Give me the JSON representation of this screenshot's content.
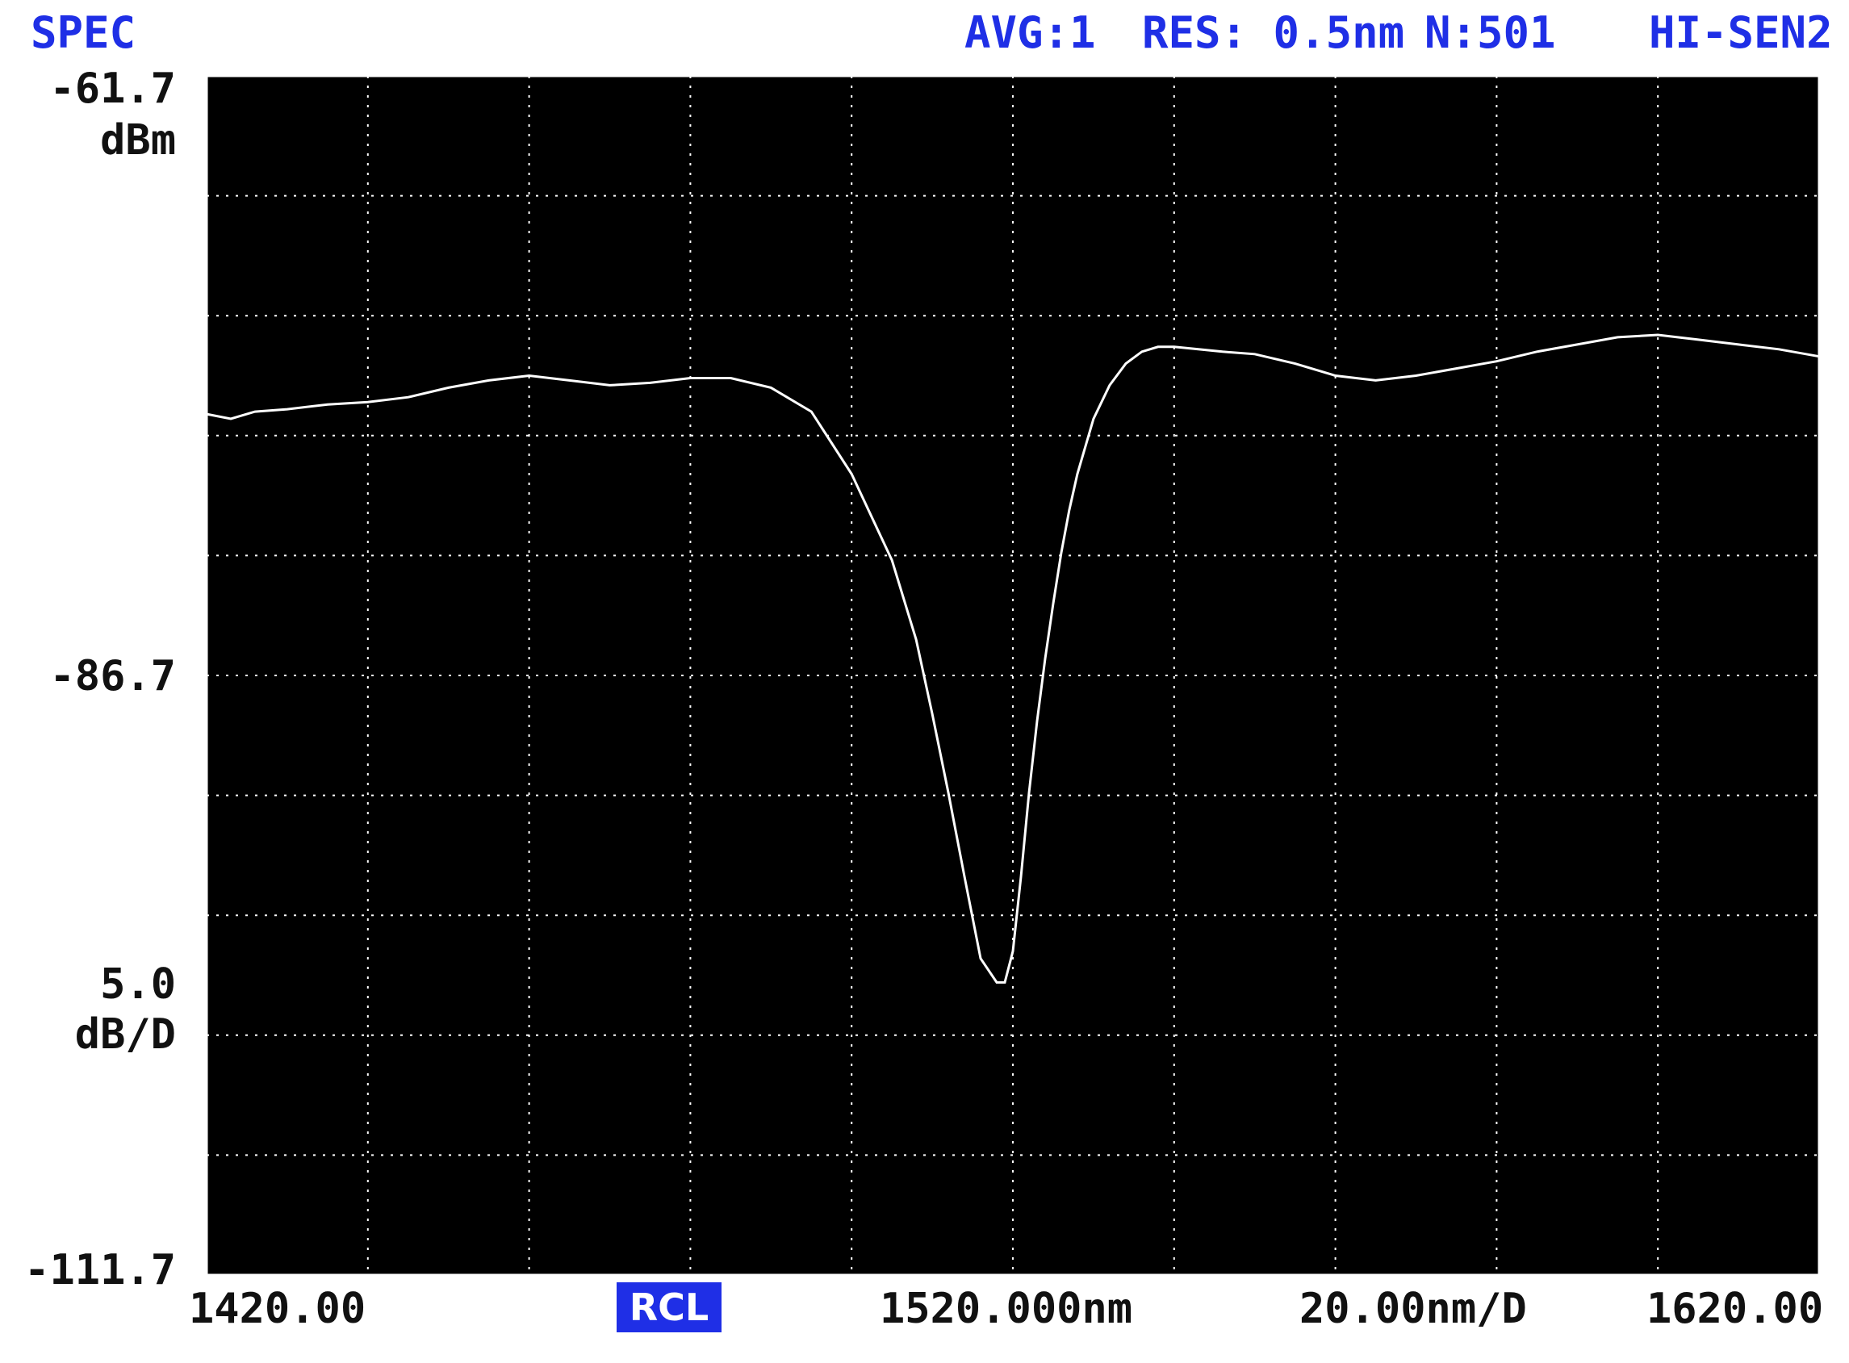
{
  "header": {
    "mode": "SPEC",
    "avg": "AVG:1",
    "res": "RES: 0.5nm",
    "n": "N:501",
    "sens": "HI-SEN2"
  },
  "y_axis": {
    "ref_level": "-61.7",
    "ref_unit": "dBm",
    "center_level": "-86.7",
    "scale": "5.0",
    "scale_unit": "dB/D",
    "bottom_level": "-111.7"
  },
  "x_axis": {
    "start": "1420.00",
    "center": "1520.000nm",
    "span_per_div": "20.00nm/D",
    "stop": "1620.00"
  },
  "badge": "RCL",
  "colors": {
    "background": "#000000",
    "grid": "#ffffff",
    "trace": "#ffffff",
    "header": "#1f2fe6"
  },
  "chart_data": {
    "type": "line",
    "xlim": [
      1420,
      1620
    ],
    "ylim": [
      -111.7,
      -61.7
    ],
    "x_divisions": 10,
    "y_divisions": 10,
    "grid": true,
    "series": [
      {
        "x": [
          1420,
          1423,
          1426,
          1430,
          1435,
          1440,
          1445,
          1450,
          1455,
          1460,
          1465,
          1470,
          1475,
          1480,
          1485,
          1490,
          1495,
          1500,
          1505,
          1508,
          1510,
          1512,
          1514,
          1516,
          1518,
          1519,
          1520,
          1521,
          1522,
          1523,
          1524,
          1525,
          1526,
          1527,
          1528,
          1530,
          1532,
          1534,
          1536,
          1538,
          1540,
          1543,
          1546,
          1550,
          1555,
          1560,
          1565,
          1570,
          1575,
          1580,
          1585,
          1590,
          1595,
          1600,
          1605,
          1610,
          1615,
          1620
        ],
        "y": [
          -75.8,
          -76.0,
          -75.7,
          -75.6,
          -75.4,
          -75.3,
          -75.1,
          -74.7,
          -74.4,
          -74.2,
          -74.4,
          -74.6,
          -74.5,
          -74.3,
          -74.3,
          -74.7,
          -75.7,
          -78.3,
          -81.9,
          -85.2,
          -88.3,
          -91.6,
          -95.1,
          -98.5,
          -99.5,
          -99.5,
          -98.2,
          -95.1,
          -91.6,
          -88.6,
          -86.0,
          -83.7,
          -81.6,
          -79.8,
          -78.3,
          -76.0,
          -74.6,
          -73.7,
          -73.2,
          -73.0,
          -73.0,
          -73.1,
          -73.2,
          -73.3,
          -73.7,
          -74.2,
          -74.4,
          -74.2,
          -73.9,
          -73.6,
          -73.2,
          -72.9,
          -72.6,
          -72.5,
          -72.7,
          -72.9,
          -73.1,
          -73.4
        ]
      }
    ]
  }
}
